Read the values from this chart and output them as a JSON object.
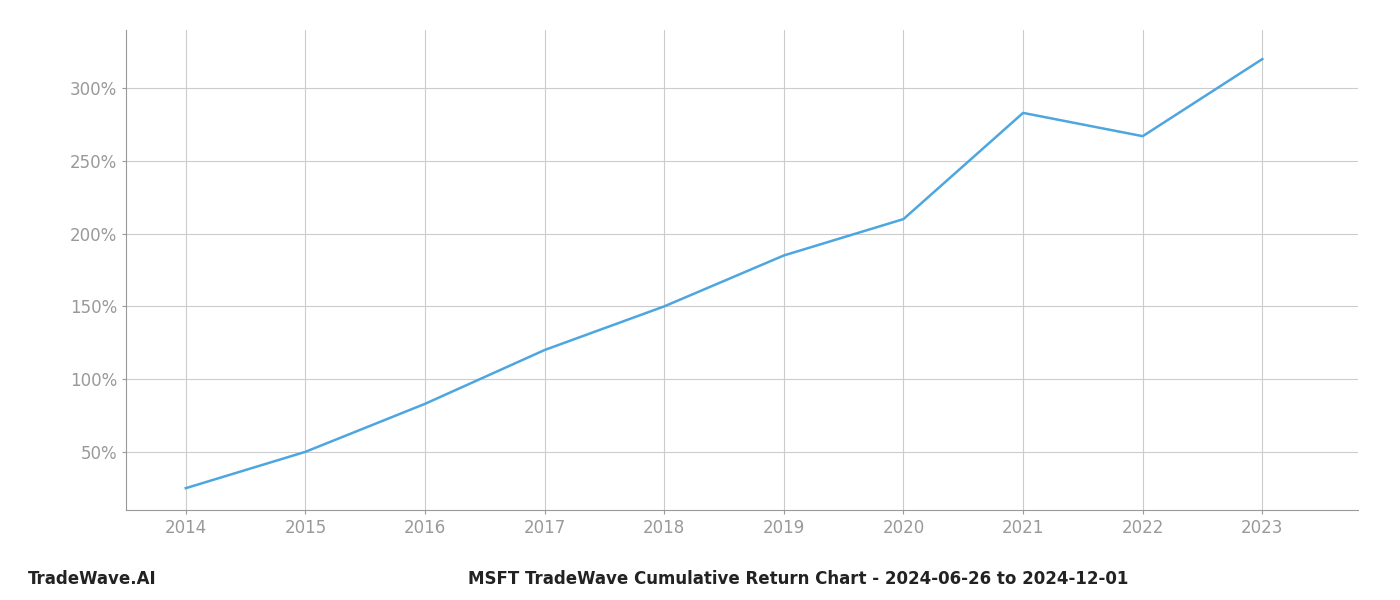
{
  "x_years": [
    2014,
    2015,
    2016,
    2017,
    2018,
    2019,
    2020,
    2021,
    2022,
    2023
  ],
  "y_values": [
    25,
    50,
    83,
    120,
    150,
    185,
    210,
    283,
    267,
    320
  ],
  "line_color": "#4DA6E0",
  "line_width": 1.8,
  "background_color": "#ffffff",
  "grid_color": "#cccccc",
  "title": "MSFT TradeWave Cumulative Return Chart - 2024-06-26 to 2024-12-01",
  "watermark": "TradeWave.AI",
  "xlim": [
    2013.5,
    2023.8
  ],
  "ylim": [
    10,
    340
  ],
  "yticks": [
    50,
    100,
    150,
    200,
    250,
    300
  ],
  "xticks": [
    2014,
    2015,
    2016,
    2017,
    2018,
    2019,
    2020,
    2021,
    2022,
    2023
  ],
  "title_fontsize": 12,
  "watermark_fontsize": 12,
  "tick_fontsize": 12,
  "tick_color": "#999999"
}
